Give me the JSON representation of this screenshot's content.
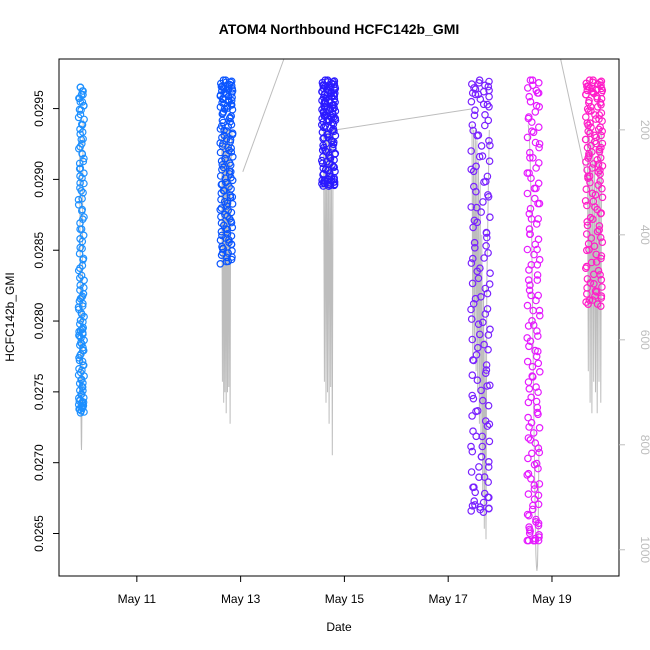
{
  "chart_data": {
    "type": "scatter",
    "title": "ATOM4 Northbound HCFC142b_GMI",
    "xlabel": "Date",
    "ylabel": "HCFC142b_GMI",
    "x_axis": {
      "type": "date",
      "range": [
        "2018-05-09T12:00",
        "2018-05-20T07:00"
      ],
      "ticks": [
        "2018-05-11",
        "2018-05-13",
        "2018-05-15",
        "2018-05-17",
        "2018-05-19"
      ],
      "tick_labels": [
        "May 11",
        "May 13",
        "May 15",
        "May 17",
        "May 19"
      ]
    },
    "y_axis": {
      "range": [
        0.0262,
        0.02985
      ],
      "ticks": [
        0.0265,
        0.027,
        0.0275,
        0.028,
        0.0285,
        0.029,
        0.0295
      ],
      "tick_labels": [
        "0.0265",
        "0.0270",
        "0.0275",
        "0.0280",
        "0.0285",
        "0.0290",
        "0.0295"
      ]
    },
    "y2_axis": {
      "label": "",
      "reversed": true,
      "range": [
        1050,
        65
      ],
      "ticks": [
        200,
        400,
        600,
        800,
        1000
      ],
      "tick_labels": [
        "200",
        "400",
        "600",
        "800",
        "1000"
      ]
    },
    "marker": "open-circle",
    "pressure_trace_color": "#bdbdbd",
    "series": [
      {
        "color": "#1e90ff",
        "start": "2018-05-09T21:30",
        "end": "2018-05-09T23:15",
        "values": [
          0.02965,
          0.0295,
          0.0293,
          0.0291,
          0.0289,
          0.02865,
          0.0284,
          0.0282,
          0.0281,
          0.02795,
          0.0279,
          0.0278,
          0.02765,
          0.0275,
          0.02735,
          0.0274,
          0.02745,
          0.0276,
          0.0278,
          0.0281,
          0.0285,
          0.0289,
          0.0292,
          0.0295,
          0.02965
        ],
        "pressure": [
          220,
          260,
          340,
          420,
          500,
          560,
          620,
          680,
          740,
          780,
          800,
          810,
          790,
          740,
          660,
          560,
          460,
          360,
          280,
          220,
          190,
          180
        ]
      },
      {
        "color": "#0a55ff",
        "start": "2018-05-12T15:00",
        "end": "2018-05-12T20:00",
        "values": [
          0.0297,
          0.02965,
          0.0296,
          0.02955,
          0.0295,
          0.0294,
          0.0293,
          0.0292,
          0.0291,
          0.029,
          0.0289,
          0.0288,
          0.0287,
          0.0286,
          0.0285,
          0.0284,
          0.0286,
          0.0289,
          0.0292,
          0.0294,
          0.0296,
          0.0297
        ],
        "pressure": [
          190,
          200,
          680,
          200,
          720,
          200,
          700,
          200,
          740,
          200,
          700,
          200,
          690,
          200,
          760,
          300,
          250,
          200
        ]
      },
      {
        "color": "#2b1aff",
        "start": "2018-05-14T14:00",
        "end": "2018-05-14T19:30",
        "values": [
          0.0297,
          0.02965,
          0.0296,
          0.02955,
          0.0295,
          0.02945,
          0.0294,
          0.0293,
          0.0292,
          0.0291,
          0.029,
          0.02895,
          0.029,
          0.0292,
          0.0294,
          0.0296,
          0.0297
        ],
        "pressure": [
          190,
          200,
          680,
          200,
          720,
          200,
          700,
          200,
          760,
          200,
          690,
          200,
          820,
          220,
          200,
          190
        ]
      },
      {
        "color": "#7a22ff",
        "start": "2018-05-17T11:00",
        "end": "2018-05-17T19:00",
        "values": [
          0.0297,
          0.02965,
          0.0296,
          0.0295,
          0.0293,
          0.0291,
          0.0289,
          0.0287,
          0.0285,
          0.0283,
          0.0281,
          0.0279,
          0.0277,
          0.0275,
          0.0273,
          0.0271,
          0.0269,
          0.0267,
          0.02665,
          0.0268,
          0.0272,
          0.0277,
          0.0282,
          0.0287,
          0.0292,
          0.0296
        ],
        "pressure": [
          190,
          640,
          200,
          620,
          200,
          660,
          220,
          700,
          260,
          760,
          300,
          820,
          400,
          900,
          500,
          960,
          600,
          980,
          500,
          400,
          300,
          200
        ]
      },
      {
        "color": "#e51bff",
        "start": "2018-05-18T13:00",
        "end": "2018-05-18T18:00",
        "values": [
          0.0297,
          0.0296,
          0.0294,
          0.0292,
          0.029,
          0.0288,
          0.0286,
          0.0284,
          0.0282,
          0.028,
          0.0278,
          0.0276,
          0.0274,
          0.0272,
          0.027,
          0.0268,
          0.0266,
          0.02645,
          0.02645,
          0.0266,
          0.027,
          0.0275,
          0.028,
          0.0286,
          0.0292,
          0.0297
        ],
        "pressure": [
          190,
          200,
          210,
          230,
          260,
          300,
          360,
          420,
          500,
          580,
          660,
          740,
          820,
          900,
          960,
          1010,
          1030,
          1040,
          1030,
          980,
          900,
          800
        ]
      },
      {
        "color": "#ff1ec8",
        "start": "2018-05-19T16:00",
        "end": "2018-05-19T23:00",
        "values": [
          0.0297,
          0.02965,
          0.0296,
          0.0295,
          0.0294,
          0.0293,
          0.0292,
          0.0291,
          0.029,
          0.0288,
          0.0286,
          0.0284,
          0.0282,
          0.0281,
          0.0283,
          0.0286,
          0.0289,
          0.0292,
          0.0294,
          0.0296,
          0.0297
        ],
        "pressure": [
          190,
          200,
          660,
          200,
          720,
          220,
          740,
          200,
          680,
          260,
          700,
          300,
          740,
          200,
          680,
          200,
          720,
          200
        ]
      }
    ],
    "pressure_connectors": [
      [
        "2018-05-13T01:00",
        280,
        "2018-05-13T20:00",
        65
      ],
      [
        "2018-05-14T20:00",
        200,
        "2018-05-17T11:00",
        160
      ],
      [
        "2018-05-19T04:00",
        65,
        "2018-05-19T18:00",
        330
      ]
    ],
    "grid": false,
    "legend": "none"
  }
}
